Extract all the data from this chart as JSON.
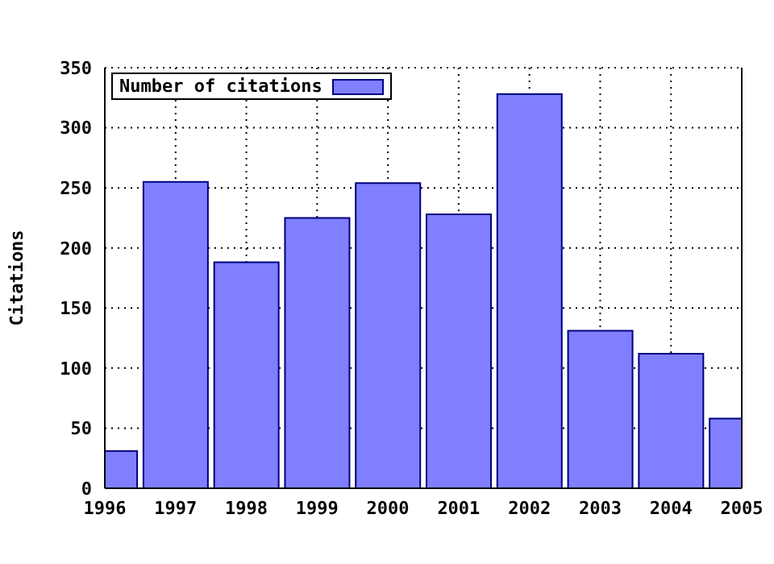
{
  "chart_data": {
    "type": "bar",
    "ylabel": "Citations",
    "x": [
      1996,
      1997,
      1998,
      1999,
      2000,
      2001,
      2002,
      2003,
      2004,
      2005
    ],
    "series": [
      {
        "name": "Number of citations",
        "color": "#7f7fff",
        "values": [
          31,
          255,
          188,
          225,
          254,
          228,
          328,
          131,
          112,
          58
        ]
      }
    ],
    "xlim": [
      1996,
      2005
    ],
    "xticks": [
      1996,
      1997,
      1998,
      1999,
      2000,
      2001,
      2002,
      2003,
      2004,
      2005
    ],
    "ylim": [
      0,
      350
    ],
    "yticks": [
      0,
      50,
      100,
      150,
      200,
      250,
      300,
      350
    ],
    "grid": true,
    "legend": "top left"
  }
}
